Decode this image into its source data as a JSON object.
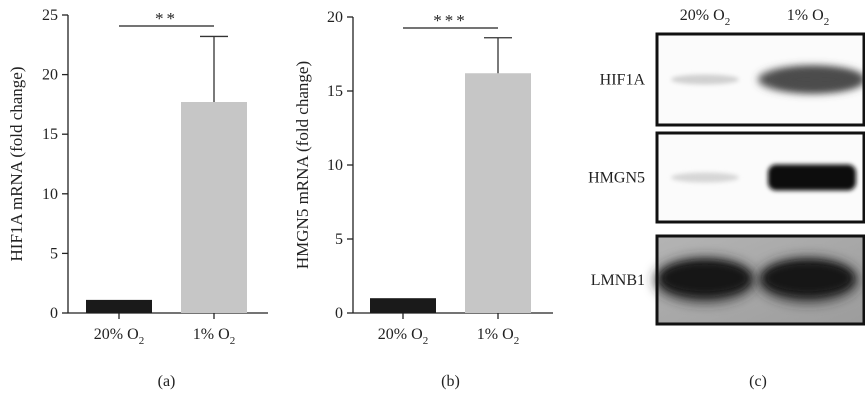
{
  "chart_data": [
    {
      "type": "bar",
      "panel": "(a)",
      "categories": [
        "20% O",
        "1% O"
      ],
      "category_subscript": "2",
      "values": [
        1.1,
        17.7
      ],
      "error_upper": [
        null,
        23.2
      ],
      "colors": [
        "#1a1a1a",
        "#c6c6c6"
      ],
      "ylabel": "HIF1A mRNA (fold change)",
      "ylim": [
        0,
        25
      ],
      "yticks": [
        0,
        5,
        10,
        15,
        20,
        25
      ],
      "significance": "**"
    },
    {
      "type": "bar",
      "panel": "(b)",
      "categories": [
        "20% O",
        "1% O"
      ],
      "category_subscript": "2",
      "values": [
        1.0,
        16.2
      ],
      "error_upper": [
        null,
        18.6
      ],
      "colors": [
        "#1a1a1a",
        "#c6c6c6"
      ],
      "ylabel": "HMGN5 mRNA (fold change)",
      "ylim": [
        0,
        20
      ],
      "yticks": [
        0,
        5,
        10,
        15,
        20
      ],
      "significance": "***"
    }
  ],
  "blot": {
    "panel": "(c)",
    "columns": [
      "20% O",
      "1% O"
    ],
    "column_subscript": "2",
    "rows": [
      {
        "label": "HIF1A",
        "band_intensity": [
          0.15,
          0.75
        ]
      },
      {
        "label": "HMGN5",
        "band_intensity": [
          0.12,
          1.0
        ]
      },
      {
        "label": "LMNB1",
        "band_intensity": [
          0.95,
          0.95
        ]
      }
    ]
  }
}
